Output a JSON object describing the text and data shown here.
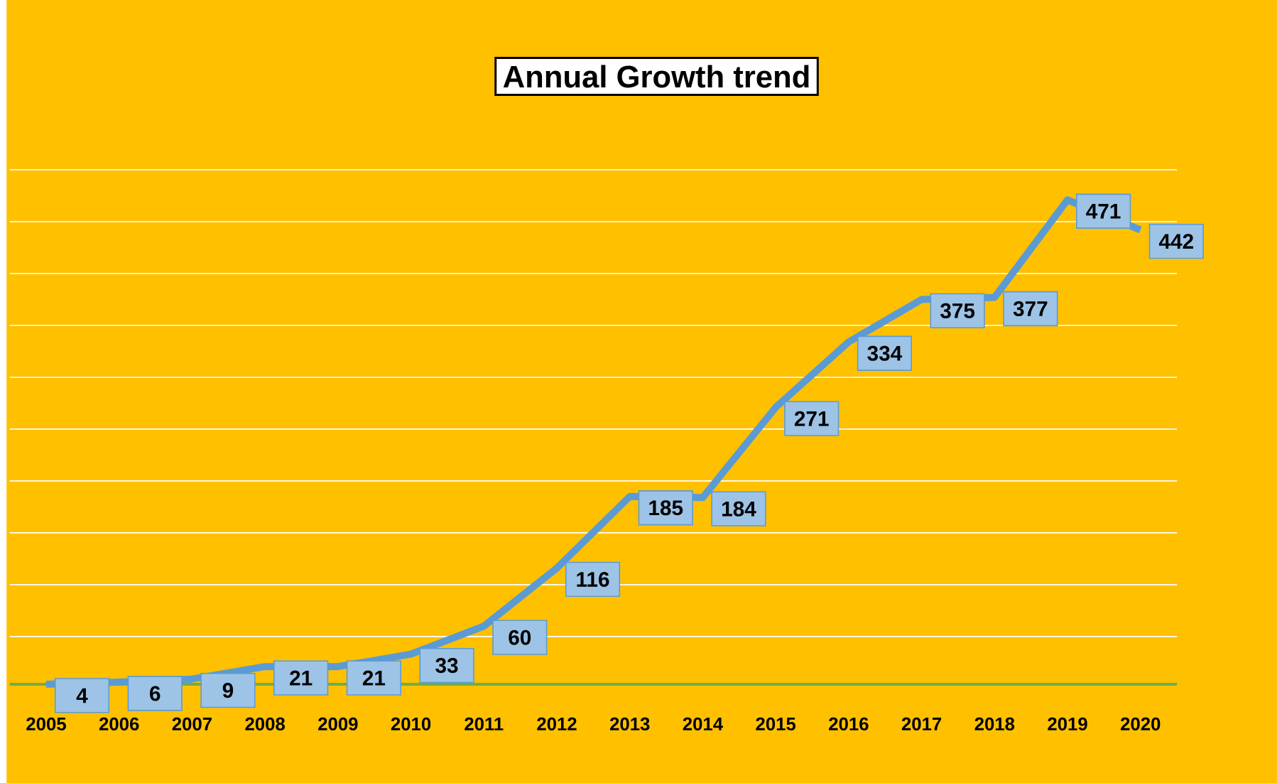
{
  "chart_data": {
    "type": "line",
    "title": "Annual Growth trend",
    "categories": [
      "2005",
      "2006",
      "2007",
      "2008",
      "2009",
      "2010",
      "2011",
      "2012",
      "2013",
      "2014",
      "2015",
      "2016",
      "2017",
      "2018",
      "2019",
      "2020"
    ],
    "values": [
      4,
      6,
      9,
      21,
      21,
      33,
      60,
      116,
      185,
      184,
      271,
      334,
      375,
      377,
      471,
      442
    ],
    "color": "#5b9bd5",
    "data_labels": true,
    "grid": "y",
    "tick_labels": "x",
    "marker": "none",
    "line_style": "solid"
  }
}
